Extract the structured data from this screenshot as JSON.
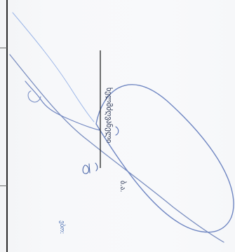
{
  "document": {
    "left_caption": "ებო:",
    "signer_caption": "ხელმძღვანელი",
    "initials": "ბ.ა."
  }
}
